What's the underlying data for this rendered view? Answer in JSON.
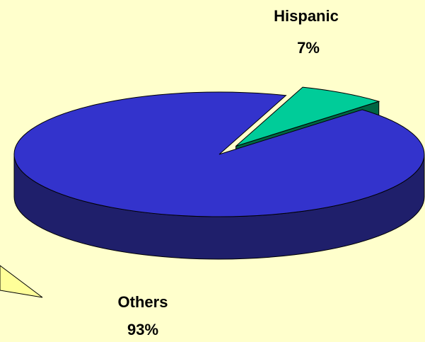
{
  "chart_data": {
    "type": "pie",
    "title": "",
    "slices": [
      {
        "label": "Hispanic",
        "value": 7,
        "value_label": "7%",
        "color": "#00CC99",
        "side_color": "#006644",
        "exploded": true
      },
      {
        "label": "Others",
        "value": 93,
        "value_label": "93%",
        "color": "#3333CC",
        "side_color": "#1F1F6B",
        "exploded": false
      }
    ],
    "background": "#FFFFCC",
    "callout_color": "#FFFF99",
    "legend": "none",
    "three_d": true
  }
}
